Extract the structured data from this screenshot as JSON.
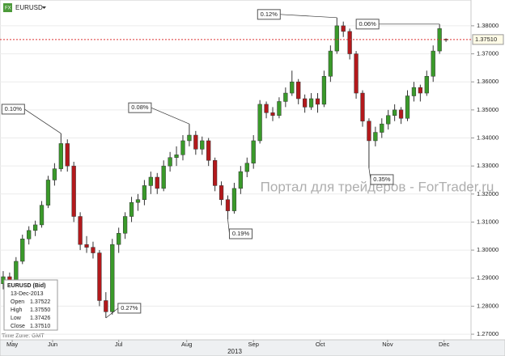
{
  "chart_data": {
    "type": "candlestick",
    "symbol": "EURUSD",
    "candles": [
      [
        1.288,
        1.2925,
        1.286,
        1.2905
      ],
      [
        1.2905,
        1.292,
        1.2865,
        1.288
      ],
      [
        1.288,
        1.2975,
        1.287,
        1.296
      ],
      [
        1.296,
        1.3055,
        1.295,
        1.304
      ],
      [
        1.304,
        1.3085,
        1.302,
        1.307
      ],
      [
        1.307,
        1.3105,
        1.305,
        1.309
      ],
      [
        1.309,
        1.3175,
        1.308,
        1.316
      ],
      [
        1.316,
        1.3265,
        1.315,
        1.325
      ],
      [
        1.325,
        1.331,
        1.323,
        1.329
      ],
      [
        1.329,
        1.3416,
        1.328,
        1.338
      ],
      [
        1.338,
        1.3395,
        1.328,
        1.33
      ],
      [
        1.33,
        1.3315,
        1.31,
        1.312
      ],
      [
        1.312,
        1.3135,
        1.3,
        1.302
      ],
      [
        1.302,
        1.305,
        1.299,
        1.301
      ],
      [
        1.301,
        1.303,
        1.297,
        1.299
      ],
      [
        1.299,
        1.3,
        1.28,
        1.282
      ],
      [
        1.282,
        1.285,
        1.2758,
        1.278
      ],
      [
        1.278,
        1.304,
        1.277,
        1.302
      ],
      [
        1.302,
        1.308,
        1.299,
        1.306
      ],
      [
        1.306,
        1.3135,
        1.304,
        1.312
      ],
      [
        1.312,
        1.319,
        1.31,
        1.317
      ],
      [
        1.317,
        1.32,
        1.314,
        1.318
      ],
      [
        1.318,
        1.325,
        1.316,
        1.323
      ],
      [
        1.323,
        1.328,
        1.32,
        1.326
      ],
      [
        1.326,
        1.3275,
        1.32,
        1.322
      ],
      [
        1.322,
        1.332,
        1.321,
        1.33
      ],
      [
        1.33,
        1.335,
        1.328,
        1.333
      ],
      [
        1.333,
        1.337,
        1.33,
        1.334
      ],
      [
        1.334,
        1.341,
        1.332,
        1.339
      ],
      [
        1.339,
        1.345,
        1.337,
        1.341
      ],
      [
        1.341,
        1.3425,
        1.334,
        1.336
      ],
      [
        1.336,
        1.3405,
        1.334,
        1.339
      ],
      [
        1.339,
        1.34,
        1.33,
        1.332
      ],
      [
        1.332,
        1.333,
        1.321,
        1.323
      ],
      [
        1.323,
        1.3245,
        1.316,
        1.318
      ],
      [
        1.318,
        1.3195,
        1.311,
        1.314
      ],
      [
        1.314,
        1.324,
        1.313,
        1.322
      ],
      [
        1.322,
        1.33,
        1.32,
        1.328
      ],
      [
        1.328,
        1.333,
        1.326,
        1.331
      ],
      [
        1.331,
        1.341,
        1.329,
        1.339
      ],
      [
        1.339,
        1.3535,
        1.338,
        1.352
      ],
      [
        1.352,
        1.353,
        1.347,
        1.349
      ],
      [
        1.349,
        1.351,
        1.346,
        1.348
      ],
      [
        1.348,
        1.3545,
        1.347,
        1.353
      ],
      [
        1.353,
        1.358,
        1.351,
        1.356
      ],
      [
        1.356,
        1.364,
        1.355,
        1.36
      ],
      [
        1.36,
        1.361,
        1.352,
        1.354
      ],
      [
        1.354,
        1.3555,
        1.349,
        1.351
      ],
      [
        1.351,
        1.356,
        1.35,
        1.354
      ],
      [
        1.354,
        1.356,
        1.349,
        1.352
      ],
      [
        1.352,
        1.364,
        1.351,
        1.362
      ],
      [
        1.362,
        1.373,
        1.36,
        1.371
      ],
      [
        1.371,
        1.3829,
        1.37,
        1.38
      ],
      [
        1.38,
        1.3815,
        1.376,
        1.378
      ],
      [
        1.378,
        1.379,
        1.368,
        1.37
      ],
      [
        1.37,
        1.371,
        1.354,
        1.356
      ],
      [
        1.356,
        1.357,
        1.344,
        1.346
      ],
      [
        1.346,
        1.347,
        1.3292,
        1.339
      ],
      [
        1.339,
        1.344,
        1.337,
        1.342
      ],
      [
        1.342,
        1.347,
        1.34,
        1.345
      ],
      [
        1.345,
        1.35,
        1.343,
        1.348
      ],
      [
        1.348,
        1.352,
        1.346,
        1.35
      ],
      [
        1.35,
        1.351,
        1.345,
        1.347
      ],
      [
        1.347,
        1.357,
        1.346,
        1.355
      ],
      [
        1.355,
        1.36,
        1.353,
        1.358
      ],
      [
        1.358,
        1.359,
        1.353,
        1.356
      ],
      [
        1.356,
        1.364,
        1.355,
        1.362
      ],
      [
        1.362,
        1.373,
        1.36,
        1.371
      ],
      [
        1.371,
        1.3806,
        1.37,
        1.379
      ],
      [
        1.37522,
        1.3755,
        1.37426,
        1.3751
      ]
    ],
    "up_color": "#3a9a2a",
    "down_color": "#b3191c",
    "xlim": [
      -0.5,
      72.9
    ],
    "xticks": [
      {
        "value": 1.4,
        "label": "May"
      },
      {
        "value": 7.7,
        "label": "Jun"
      },
      {
        "value": 18.0,
        "label": "Jul"
      },
      {
        "value": 28.6,
        "label": "Aug"
      },
      {
        "value": 39.0,
        "label": "Sep"
      },
      {
        "value": 49.4,
        "label": "Oct"
      },
      {
        "value": 59.9,
        "label": "Nov"
      },
      {
        "value": 68.7,
        "label": "Dec"
      }
    ],
    "x_axis_label": "2013",
    "ylim": [
      1.268,
      1.3892
    ],
    "yticks": [
      {
        "value": 1.27,
        "label": "1.27000"
      },
      {
        "value": 1.28,
        "label": "1.28000"
      },
      {
        "value": 1.29,
        "label": "1.29000"
      },
      {
        "value": 1.3,
        "label": "1.30000"
      },
      {
        "value": 1.31,
        "label": "1.31000"
      },
      {
        "value": 1.32,
        "label": "1.32000"
      },
      {
        "value": 1.33,
        "label": "1.33000"
      },
      {
        "value": 1.34,
        "label": "1.34000"
      },
      {
        "value": 1.35,
        "label": "1.35000"
      },
      {
        "value": 1.36,
        "label": "1.36000"
      },
      {
        "value": 1.37,
        "label": "1.37000"
      },
      {
        "value": 1.38,
        "label": "1.38000"
      }
    ],
    "grid": true,
    "current_price": {
      "value": 1.3751,
      "label": "1.37510"
    },
    "annotations": [
      {
        "label": "0.10%",
        "x": 9,
        "point": "high"
      },
      {
        "label": "0.27%",
        "x": 16,
        "point": "low"
      },
      {
        "label": "0.08%",
        "x": 29,
        "point": "high"
      },
      {
        "label": "0.19%",
        "x": 35,
        "point": "low"
      },
      {
        "label": "0.12%",
        "x": 52,
        "point": "high"
      },
      {
        "label": "0.35%",
        "x": 57,
        "point": "low"
      },
      {
        "label": "0.06%",
        "x": 68,
        "point": "high"
      }
    ],
    "info_box": {
      "title": "EURUSD (Bid)",
      "date": "13-Dec-2013",
      "rows": [
        [
          "Open",
          "1.37522"
        ],
        [
          "High",
          "1.37550"
        ],
        [
          "Low",
          "1.37426"
        ],
        [
          "Close",
          "1.37510"
        ]
      ]
    },
    "time_zone": "Time Zone: GMT",
    "watermark": "Портал для трейдеров - ForTrader.ru"
  }
}
